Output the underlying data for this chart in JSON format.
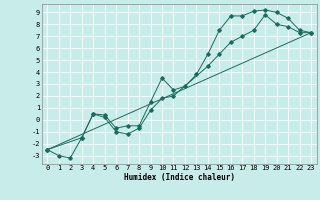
{
  "xlabel": "Humidex (Indice chaleur)",
  "ylabel": "",
  "background_color": "#c8ece9",
  "grid_color": "#ffffff",
  "line_color": "#1a6b5e",
  "xlim": [
    -0.5,
    23.5
  ],
  "ylim": [
    -3.7,
    9.7
  ],
  "xticks": [
    0,
    1,
    2,
    3,
    4,
    5,
    6,
    7,
    8,
    9,
    10,
    11,
    12,
    13,
    14,
    15,
    16,
    17,
    18,
    19,
    20,
    21,
    22,
    23
  ],
  "yticks": [
    -3,
    -2,
    -1,
    0,
    1,
    2,
    3,
    4,
    5,
    6,
    7,
    8,
    9
  ],
  "series1": [
    [
      0,
      -2.5
    ],
    [
      1,
      -3.0
    ],
    [
      2,
      -3.2
    ],
    [
      3,
      -1.5
    ],
    [
      4,
      0.5
    ],
    [
      5,
      0.4
    ],
    [
      6,
      -0.7
    ],
    [
      7,
      -0.5
    ],
    [
      8,
      -0.5
    ],
    [
      9,
      1.5
    ],
    [
      10,
      3.5
    ],
    [
      11,
      2.5
    ],
    [
      12,
      2.8
    ],
    [
      13,
      3.8
    ],
    [
      14,
      5.5
    ],
    [
      15,
      7.5
    ],
    [
      16,
      8.7
    ],
    [
      17,
      8.7
    ],
    [
      18,
      9.1
    ],
    [
      19,
      9.2
    ],
    [
      20,
      9.0
    ],
    [
      21,
      8.5
    ],
    [
      22,
      7.5
    ],
    [
      23,
      7.3
    ]
  ],
  "series2": [
    [
      0,
      -2.5
    ],
    [
      3,
      -1.5
    ],
    [
      4,
      0.5
    ],
    [
      5,
      0.2
    ],
    [
      6,
      -1.0
    ],
    [
      7,
      -1.2
    ],
    [
      8,
      -0.7
    ],
    [
      9,
      0.8
    ],
    [
      10,
      1.8
    ],
    [
      11,
      2.0
    ],
    [
      14,
      4.5
    ],
    [
      15,
      5.5
    ],
    [
      16,
      6.5
    ],
    [
      17,
      7.0
    ],
    [
      18,
      7.5
    ],
    [
      19,
      8.8
    ],
    [
      20,
      8.0
    ],
    [
      21,
      7.8
    ],
    [
      22,
      7.3
    ],
    [
      23,
      7.3
    ]
  ],
  "series3": [
    [
      0,
      -2.5
    ],
    [
      23,
      7.3
    ]
  ],
  "xlabel_fontsize": 5.5,
  "tick_fontsize": 5.0,
  "marker_size": 1.8,
  "line_width": 0.7
}
